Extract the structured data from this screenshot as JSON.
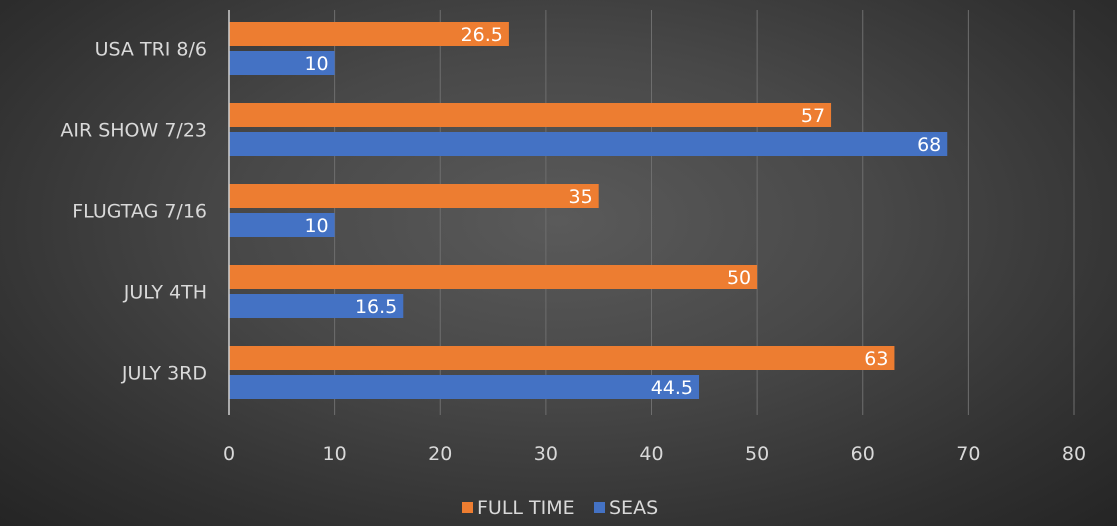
{
  "chart_data": {
    "type": "bar",
    "orientation": "horizontal",
    "title": "",
    "xlabel": "",
    "ylabel": "",
    "categories": [
      "USA TRI 8/6",
      "AIR SHOW 7/23",
      "FLUGTAG 7/16",
      "JULY 4TH",
      "JULY 3RD"
    ],
    "series": [
      {
        "name": "FULL TIME",
        "color": "#ed7d31",
        "values": [
          26.5,
          57,
          35,
          50,
          63
        ],
        "labels": [
          "26.5",
          "57",
          "35",
          "50",
          "63"
        ]
      },
      {
        "name": "SEAS",
        "color": "#4472c4",
        "values": [
          10,
          68,
          10,
          16.5,
          44.5
        ],
        "labels": [
          "10",
          "68",
          "10",
          "16.5",
          "44.5"
        ]
      }
    ],
    "xlim": [
      0,
      80
    ],
    "xticks": [
      0,
      10,
      20,
      30,
      40,
      50,
      60,
      70,
      80
    ],
    "xtick_labels": [
      "0",
      "10",
      "20",
      "30",
      "40",
      "50",
      "60",
      "70",
      "80"
    ],
    "grid": "vertical",
    "legend": "bottom"
  }
}
